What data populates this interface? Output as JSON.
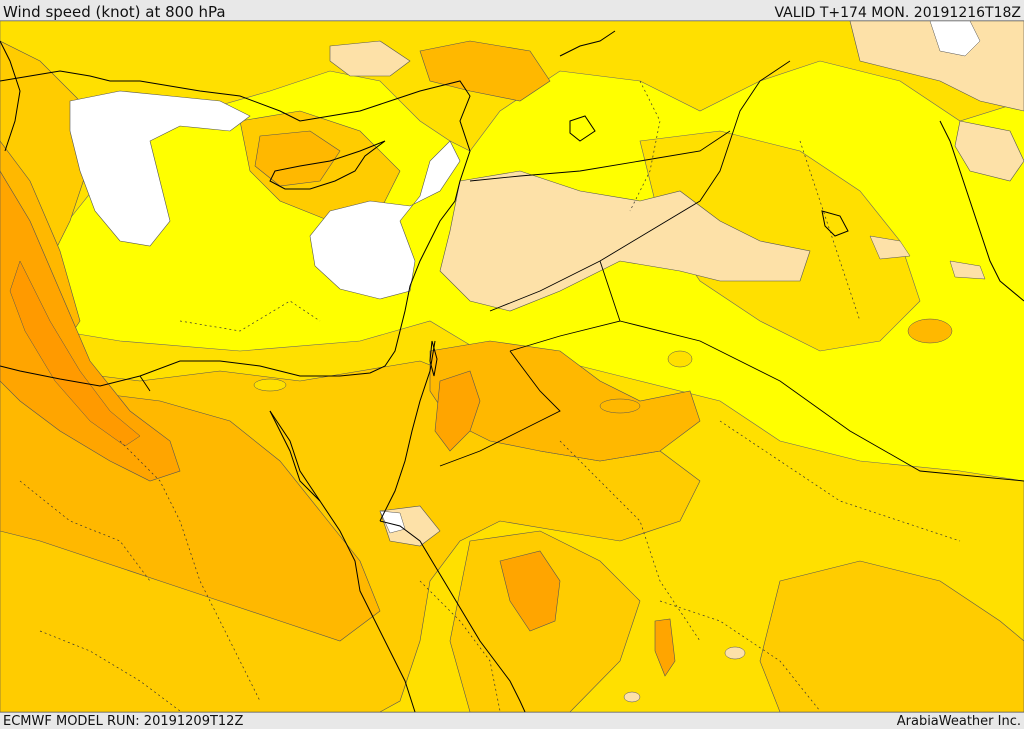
{
  "header": {
    "title": "Wind speed (knot) at 800 hPa",
    "valid_time": "VALID T+174 MON. 20191216T18Z"
  },
  "footer": {
    "model_run": "ECMWF MODEL RUN: 20191209T12Z",
    "credit": "ArabiaWeather Inc."
  },
  "map": {
    "variable": "wind speed",
    "units": "knot",
    "level": "800 hPa",
    "fill_colors": {
      "white": "#ffffff",
      "cream": "#fde1a8",
      "yellow": "#ffff00",
      "yellow_deep": "#ffe000",
      "gold": "#ffcc00",
      "light_orange": "#ffb800",
      "orange": "#ffa500",
      "dark_orange": "#ff9a00"
    },
    "line_colors": {
      "coastline": "#000000",
      "border": "#000000",
      "contour": "#555555"
    }
  }
}
